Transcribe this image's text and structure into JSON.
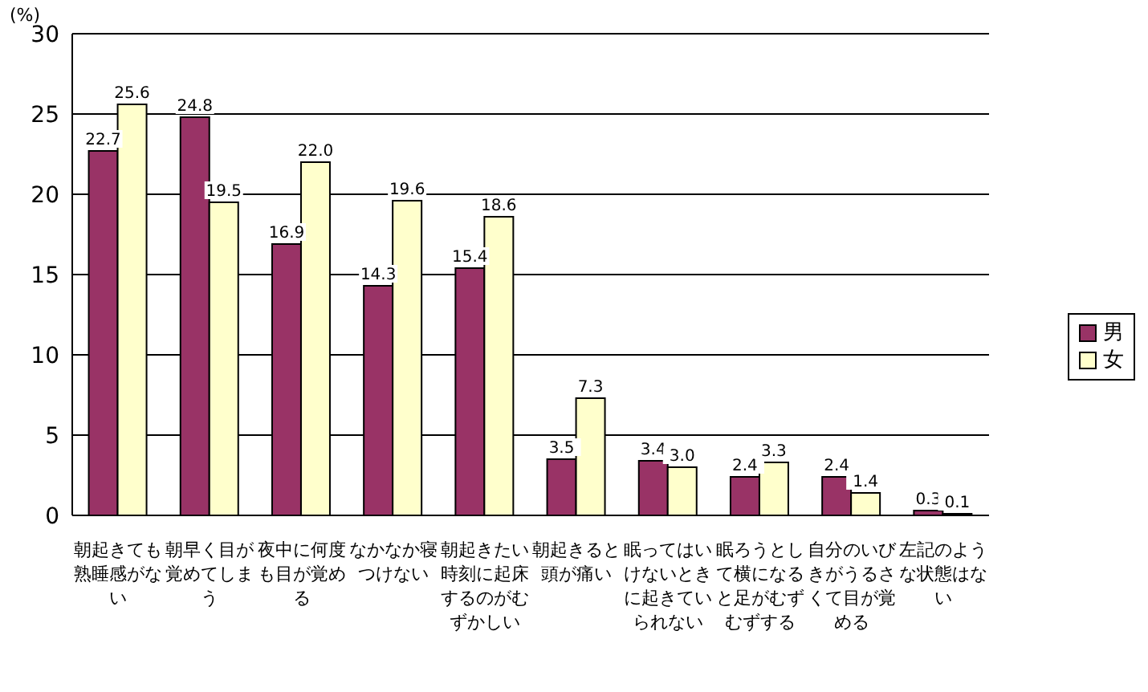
{
  "chart_data": {
    "type": "bar",
    "ylabel": "(%)",
    "categories": [
      "朝起きても熟睡感がない",
      "朝早く目が覚めてしまう",
      "夜中に何度も目が覚める",
      "なかなか寝つけない",
      "朝起きたい時刻に起床するのがむずかしい",
      "朝起きると頭が痛い",
      "眠ってはいけないときに起きていられない",
      "眠ろうとして横になると足がむずむずする",
      "自分のいびきがうるさくて目が覚める",
      "左記のような状態はない"
    ],
    "series": [
      {
        "name": "男",
        "color": "#993366",
        "values": [
          22.7,
          24.8,
          16.9,
          14.3,
          15.4,
          3.5,
          3.4,
          2.4,
          2.4,
          0.3
        ],
        "value_labels": [
          "22.7",
          "24.8",
          "16.9",
          "14.3",
          "15.4",
          "3.5",
          "3.4",
          "2.4",
          "2.4",
          "0.3"
        ]
      },
      {
        "name": "女",
        "color": "#ffffcc",
        "values": [
          25.6,
          19.5,
          22.0,
          19.6,
          18.6,
          7.3,
          3.0,
          3.3,
          1.4,
          0.1
        ],
        "value_labels": [
          "25.6",
          "19.5",
          "22.0",
          "19.6",
          "18.6",
          "7.3",
          "3.0",
          "3.3",
          "1.4",
          "0.1"
        ]
      }
    ],
    "ylim": [
      0,
      30
    ],
    "yticks": [
      0,
      5,
      10,
      15,
      20,
      25,
      30
    ],
    "grid": "y",
    "legend": "right",
    "data_labels": true
  }
}
